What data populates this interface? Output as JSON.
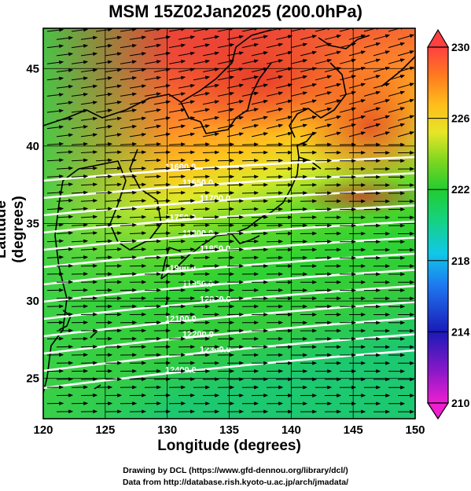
{
  "title": "MSM 15Z02Jan2025 (200.0hPa)",
  "xlabel": "Longitude (degrees)",
  "ylabel": "Latitude  (degrees)",
  "credit_line1": "Drawing by DCL (https://www.gfd-dennou.org/library/dcl/)",
  "credit_line2": "Data from http://database.rish.kyoto-u.ac.jp/arch/jmadata/",
  "map": {
    "lon_range": [
      120,
      150
    ],
    "lat_range": [
      22.4,
      47.6
    ],
    "lon_ticks": [
      "120",
      "125",
      "130",
      "135",
      "140",
      "145",
      "150"
    ],
    "lat_ticks": [
      "25",
      "30",
      "35",
      "40",
      "45"
    ],
    "shaded_field": "temperature",
    "vectors": "wind streamlines",
    "contours": "geopotential height (white)"
  },
  "colorbar": {
    "min": 210,
    "max": 230,
    "tick_labels": [
      "230",
      "226",
      "222",
      "218",
      "214",
      "210"
    ],
    "colors": [
      "#ee1fd0",
      "#8a18c8",
      "#1a1ab8",
      "#1e78f0",
      "#10c8e8",
      "#16d27a",
      "#22cc30",
      "#7ed620",
      "#e6e628",
      "#ffbc1a",
      "#ff7a20",
      "#ff4040"
    ]
  },
  "contour_labels": [
    "11600.0",
    "11650.0",
    "11700.0",
    "11750.0",
    "11800.0",
    "11850.0",
    "11900.0",
    "11950.0",
    "12000.0",
    "12100.0",
    "12200.0",
    "12300.0",
    "12400.0"
  ]
}
